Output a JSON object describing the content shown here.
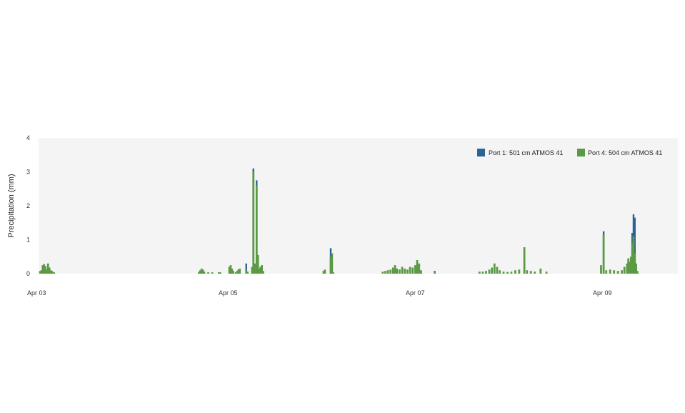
{
  "chart_data": {
    "type": "bar",
    "ylabel": "Precipitation (mm)",
    "ylim": [
      0,
      4
    ],
    "yticks": [
      0,
      1,
      2,
      3,
      4
    ],
    "xlim": [
      "2024-04-03T00:00",
      "2024-04-09T10:30"
    ],
    "xticks": [
      {
        "value": "2024-04-03T00:00",
        "label": "Apr 03"
      },
      {
        "value": "2024-04-05T00:00",
        "label": "Apr 05"
      },
      {
        "value": "2024-04-07T00:00",
        "label": "Apr 07"
      },
      {
        "value": "2024-04-09T00:00",
        "label": "Apr 09"
      }
    ],
    "grid": false,
    "legend_position": "top-right",
    "colors": {
      "plot_background": "#f4f4f4",
      "port1": "#2a6396",
      "port4": "#5a9a45"
    },
    "series": [
      {
        "name": "Port 1: 501 cm ATMOS 41",
        "color": "#2a6396",
        "points": [
          [
            "2024-04-05T06:00",
            0.3
          ],
          [
            "2024-04-05T07:50",
            3.1
          ],
          [
            "2024-04-05T08:40",
            2.75
          ],
          [
            "2024-04-06T03:40",
            0.75
          ],
          [
            "2024-04-07T06:20",
            0.08
          ],
          [
            "2024-04-09T01:40",
            1.25
          ],
          [
            "2024-04-09T09:00",
            1.2
          ],
          [
            "2024-04-09T09:20",
            1.75
          ],
          [
            "2024-04-09T09:40",
            1.65
          ]
        ]
      },
      {
        "name": "Port 4: 504 cm ATMOS 41",
        "color": "#5a9a45",
        "points": [
          [
            "2024-04-03T02:10",
            0.08
          ],
          [
            "2024-04-03T02:30",
            0.1
          ],
          [
            "2024-04-03T02:50",
            0.25
          ],
          [
            "2024-04-03T03:10",
            0.28
          ],
          [
            "2024-04-03T03:30",
            0.22
          ],
          [
            "2024-04-03T03:50",
            0.12
          ],
          [
            "2024-04-03T04:10",
            0.3
          ],
          [
            "2024-04-03T04:30",
            0.18
          ],
          [
            "2024-04-03T04:50",
            0.1
          ],
          [
            "2024-04-03T05:10",
            0.08
          ],
          [
            "2024-04-03T05:40",
            0.04
          ],
          [
            "2024-04-04T18:00",
            0.05
          ],
          [
            "2024-04-04T18:20",
            0.1
          ],
          [
            "2024-04-04T18:40",
            0.15
          ],
          [
            "2024-04-04T19:00",
            0.12
          ],
          [
            "2024-04-04T19:20",
            0.06
          ],
          [
            "2024-04-04T20:20",
            0.04
          ],
          [
            "2024-04-04T21:20",
            0.04
          ],
          [
            "2024-04-04T23:00",
            0.04
          ],
          [
            "2024-04-04T23:20",
            0.04
          ],
          [
            "2024-04-05T01:40",
            0.2
          ],
          [
            "2024-04-05T02:00",
            0.25
          ],
          [
            "2024-04-05T02:20",
            0.15
          ],
          [
            "2024-04-05T02:40",
            0.08
          ],
          [
            "2024-04-05T03:20",
            0.04
          ],
          [
            "2024-04-05T03:40",
            0.08
          ],
          [
            "2024-04-05T04:00",
            0.12
          ],
          [
            "2024-04-05T04:20",
            0.15
          ],
          [
            "2024-04-05T06:00",
            0.1
          ],
          [
            "2024-04-05T06:20",
            0.06
          ],
          [
            "2024-04-05T07:30",
            0.2
          ],
          [
            "2024-04-05T07:50",
            3.0
          ],
          [
            "2024-04-05T08:10",
            0.3
          ],
          [
            "2024-04-05T08:40",
            2.6
          ],
          [
            "2024-04-05T09:00",
            0.55
          ],
          [
            "2024-04-05T09:20",
            0.15
          ],
          [
            "2024-04-05T09:40",
            0.2
          ],
          [
            "2024-04-05T10:00",
            0.25
          ],
          [
            "2024-04-05T10:20",
            0.08
          ],
          [
            "2024-04-06T01:50",
            0.08
          ],
          [
            "2024-04-06T02:10",
            0.12
          ],
          [
            "2024-04-06T03:40",
            0.5
          ],
          [
            "2024-04-06T04:00",
            0.6
          ],
          [
            "2024-04-06T04:20",
            0.04
          ],
          [
            "2024-04-06T17:00",
            0.06
          ],
          [
            "2024-04-06T17:40",
            0.08
          ],
          [
            "2024-04-06T18:20",
            0.1
          ],
          [
            "2024-04-06T19:00",
            0.12
          ],
          [
            "2024-04-06T19:40",
            0.18
          ],
          [
            "2024-04-06T20:10",
            0.25
          ],
          [
            "2024-04-06T20:40",
            0.15
          ],
          [
            "2024-04-06T21:20",
            0.12
          ],
          [
            "2024-04-06T22:00",
            0.2
          ],
          [
            "2024-04-06T22:40",
            0.15
          ],
          [
            "2024-04-06T23:20",
            0.12
          ],
          [
            "2024-04-07T00:00",
            0.2
          ],
          [
            "2024-04-07T00:40",
            0.18
          ],
          [
            "2024-04-07T01:20",
            0.25
          ],
          [
            "2024-04-07T01:50",
            0.4
          ],
          [
            "2024-04-07T02:20",
            0.3
          ],
          [
            "2024-04-07T02:50",
            0.1
          ],
          [
            "2024-04-07T06:20",
            0.04
          ],
          [
            "2024-04-07T17:50",
            0.06
          ],
          [
            "2024-04-07T18:40",
            0.06
          ],
          [
            "2024-04-07T19:30",
            0.08
          ],
          [
            "2024-04-07T20:20",
            0.12
          ],
          [
            "2024-04-07T21:00",
            0.18
          ],
          [
            "2024-04-07T21:40",
            0.3
          ],
          [
            "2024-04-07T22:20",
            0.2
          ],
          [
            "2024-04-07T23:00",
            0.1
          ],
          [
            "2024-04-08T00:00",
            0.06
          ],
          [
            "2024-04-08T01:00",
            0.05
          ],
          [
            "2024-04-08T02:00",
            0.06
          ],
          [
            "2024-04-08T03:00",
            0.1
          ],
          [
            "2024-04-08T04:00",
            0.12
          ],
          [
            "2024-04-08T05:20",
            0.78
          ],
          [
            "2024-04-08T06:00",
            0.1
          ],
          [
            "2024-04-08T07:00",
            0.08
          ],
          [
            "2024-04-08T08:00",
            0.06
          ],
          [
            "2024-04-08T09:30",
            0.15
          ],
          [
            "2024-04-08T11:00",
            0.06
          ],
          [
            "2024-04-09T01:00",
            0.25
          ],
          [
            "2024-04-09T01:40",
            1.15
          ],
          [
            "2024-04-09T02:20",
            0.1
          ],
          [
            "2024-04-09T03:20",
            0.12
          ],
          [
            "2024-04-09T04:20",
            0.1
          ],
          [
            "2024-04-09T05:20",
            0.08
          ],
          [
            "2024-04-09T06:20",
            0.1
          ],
          [
            "2024-04-09T07:00",
            0.2
          ],
          [
            "2024-04-09T07:40",
            0.3
          ],
          [
            "2024-04-09T08:00",
            0.45
          ],
          [
            "2024-04-09T08:20",
            0.35
          ],
          [
            "2024-04-09T08:40",
            0.5
          ],
          [
            "2024-04-09T09:00",
            0.9
          ],
          [
            "2024-04-09T09:20",
            1.1
          ],
          [
            "2024-04-09T09:40",
            0.6
          ],
          [
            "2024-04-09T10:00",
            0.3
          ],
          [
            "2024-04-09T10:20",
            0.08
          ]
        ]
      }
    ]
  }
}
